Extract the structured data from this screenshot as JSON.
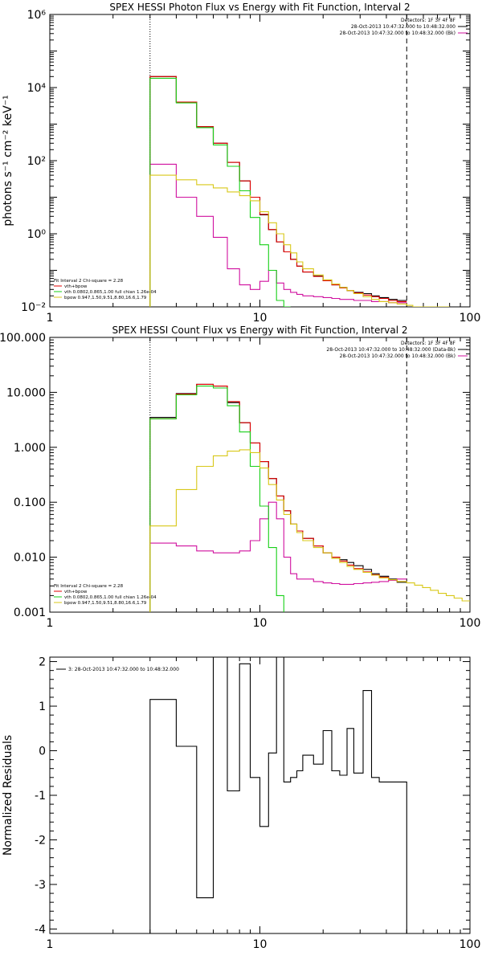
{
  "colors": {
    "data": "#000000",
    "background": "#d0109f",
    "total_fit": "#e00000",
    "vth": "#18d018",
    "bpow": "#d8c818"
  },
  "chart_data": [
    {
      "type": "line",
      "scale": "log-log",
      "title": "SPEX HESSI Photon Flux vs Energy with Fit Function, Interval 2",
      "xlabel": "",
      "ylabel": "photons s⁻¹ cm⁻² keV⁻¹",
      "xlim": [
        1,
        100
      ],
      "ylim": [
        0.01,
        1000000
      ],
      "xticks": [
        "1",
        "10",
        "100"
      ],
      "yticks": [
        {
          "value": 0.01,
          "label": "10⁻²"
        },
        {
          "value": 1,
          "label": "10⁰"
        },
        {
          "value": 100,
          "label": "10²"
        },
        {
          "value": 10000,
          "label": "10⁴"
        },
        {
          "value": 1000000,
          "label": "10⁶"
        }
      ],
      "vlines": [
        3,
        50
      ],
      "legend_top": [
        "Detectors: 1F 3F 4F 8F",
        "28-Oct-2013 10:47:32.000 to 10:48:32.000",
        "28-Oct-2013 10:47:32.000 to 10:48:32.000 (Bk)"
      ],
      "legend_bottom": [
        "Fit Interval 2   Chi-square = 2.28",
        "vth+bpow",
        "vth 0.0802,0.865,1.00  full chian 1.26e-04",
        "bpow 0.947,1.50,9.51,8.80,16.6,1.79"
      ],
      "edges": [
        3,
        4,
        5,
        6,
        7,
        8,
        9,
        10,
        11,
        12,
        13,
        14,
        15,
        16,
        18,
        20,
        22,
        24,
        26,
        28,
        31,
        34,
        37,
        41,
        45,
        50
      ],
      "series": [
        {
          "name": "28-Oct-2013 10:47:32.000 to 10:48:32.000",
          "color_key": "data",
          "ext": [],
          "values": [
            20000,
            4000,
            850,
            300,
            90,
            28,
            10,
            3.3,
            1.3,
            0.6,
            0.32,
            0.2,
            0.13,
            0.09,
            0.07,
            0.052,
            0.04,
            0.034,
            0.028,
            0.025,
            0.023,
            0.02,
            0.018,
            0.016,
            0.015
          ]
        },
        {
          "name": "28-Oct-2013 10:47:32.000 to 10:48:32.000 (Bk)",
          "color_key": "background",
          "ext": [],
          "values": [
            80,
            10,
            3,
            0.8,
            0.11,
            0.04,
            0.03,
            0.05,
            0.1,
            0.045,
            0.03,
            0.025,
            0.022,
            0.02,
            0.019,
            0.018,
            0.017,
            0.016,
            0.016,
            0.015,
            0.015,
            0.014,
            0.014,
            0.013,
            0.013
          ]
        },
        {
          "name": "vth+bpow",
          "color_key": "total_fit",
          "ext": [],
          "values": [
            20000,
            4000,
            850,
            300,
            90,
            28,
            10,
            3.4,
            1.3,
            0.6,
            0.32,
            0.2,
            0.13,
            0.09,
            0.068,
            0.052,
            0.04,
            0.033,
            0.028,
            0.024,
            0.021,
            0.019,
            0.017,
            0.015,
            0.014
          ]
        },
        {
          "name": "vth 0.0802,0.865,1.00  full chian 1.26e-04",
          "color_key": "vth",
          "ext": [],
          "values": [
            18000,
            3800,
            800,
            270,
            70,
            15,
            2.8,
            0.5,
            0.1,
            0.015,
            0.002,
            null,
            null,
            null,
            null,
            null,
            null,
            null,
            null,
            null,
            null,
            null,
            null,
            null,
            null
          ]
        },
        {
          "name": "bpow 0.947,1.50,9.51,8.80,16.6,1.79",
          "color_key": "bpow",
          "ext": [
            {
              "start": 50,
              "end": 80,
              "values": [
                0.011,
                0.01,
                0.009,
                0.008,
                0.007,
                0.006,
                0.005
              ]
            }
          ],
          "values": [
            40,
            30,
            22,
            18,
            14,
            11,
            8,
            4,
            2,
            1,
            0.5,
            0.3,
            0.17,
            0.11,
            0.075,
            0.055,
            0.042,
            0.034,
            0.028,
            0.023,
            0.019,
            0.016,
            0.014,
            0.013,
            0.012
          ]
        }
      ]
    },
    {
      "type": "line",
      "scale": "log-log",
      "title": "SPEX HESSI Count Flux vs Energy with Fit Function, Interval 2",
      "xlabel": "",
      "ylabel": "",
      "xlim": [
        1,
        100
      ],
      "ylim": [
        0.001,
        100
      ],
      "xticks": [
        "1",
        "10",
        "100"
      ],
      "yticks": [
        {
          "value": 0.001,
          "label": "0.001"
        },
        {
          "value": 0.01,
          "label": "0.010"
        },
        {
          "value": 0.1,
          "label": "0.100"
        },
        {
          "value": 1,
          "label": "1.000"
        },
        {
          "value": 10,
          "label": "10.000"
        },
        {
          "value": 100,
          "label": "100.000"
        }
      ],
      "vlines": [
        3,
        50
      ],
      "legend_top": [
        "Detectors: 1F 3F 4F 8F",
        "28-Oct-2013 10:47:32.000 to 10:48:32.000 (Data-Bk)",
        "28-Oct-2013 10:47:32.000 to 10:48:32.000 (Bk)"
      ],
      "legend_bottom": [
        "Fit Interval 2   Chi-square = 2.28",
        "vth+bpow",
        "vth 0.0802,0.865,1.00  full chian 1.26e-04",
        "bpow 0.947,1.50,9.51,8.80,16.6,1.79"
      ],
      "edges": [
        3,
        4,
        5,
        6,
        7,
        8,
        9,
        10,
        11,
        12,
        13,
        14,
        15,
        16,
        18,
        20,
        22,
        24,
        26,
        28,
        31,
        34,
        37,
        41,
        45,
        50
      ],
      "series": [
        {
          "name": "28-Oct-2013 10:47:32.000 to 10:48:32.000 (Data-Bk)",
          "color_key": "data",
          "ext": [],
          "values": [
            3.5,
            9.5,
            14,
            13,
            6.5,
            2.8,
            1.2,
            0.55,
            0.27,
            0.13,
            0.07,
            0.04,
            0.03,
            0.022,
            0.016,
            0.012,
            0.01,
            0.009,
            0.008,
            0.007,
            0.006,
            0.005,
            0.0045,
            0.004,
            0.0035
          ]
        },
        {
          "name": "28-Oct-2013 10:47:32.000 to 10:48:32.000 (Bk)",
          "color_key": "background",
          "ext": [],
          "values": [
            0.018,
            0.016,
            0.013,
            0.012,
            0.012,
            0.013,
            0.02,
            0.05,
            0.1,
            0.05,
            0.01,
            0.005,
            0.004,
            0.004,
            0.0036,
            0.0034,
            0.0033,
            0.0032,
            0.0032,
            0.0033,
            0.0034,
            0.0035,
            0.0036,
            0.0038,
            0.004
          ]
        },
        {
          "name": "vth+bpow",
          "color_key": "total_fit",
          "ext": [],
          "values": [
            3.3,
            9.3,
            14,
            13,
            6.8,
            2.8,
            1.2,
            0.55,
            0.27,
            0.13,
            0.07,
            0.04,
            0.03,
            0.022,
            0.016,
            0.012,
            0.01,
            0.0085,
            0.0072,
            0.0062,
            0.0054,
            0.0048,
            0.0043,
            0.0039,
            0.0036
          ]
        },
        {
          "name": "vth 0.0802,0.865,1.00  full chian 1.26e-04",
          "color_key": "vth",
          "ext": [],
          "values": [
            3.3,
            9,
            13,
            12,
            5.7,
            1.9,
            0.45,
            0.085,
            0.015,
            0.002,
            null,
            null,
            null,
            null,
            null,
            null,
            null,
            null,
            null,
            null,
            null,
            null,
            null,
            null,
            null
          ]
        },
        {
          "name": "bpow 0.947,1.50,9.51,8.80,16.6,1.79",
          "color_key": "bpow",
          "ext": [
            {
              "start": 50,
              "end": 100,
              "values": [
                0.0034,
                0.0031,
                0.0028,
                0.0025,
                0.0022,
                0.002,
                0.0018,
                0.0016
              ]
            }
          ],
          "values": [
            0.037,
            0.17,
            0.45,
            0.7,
            0.85,
            0.9,
            0.8,
            0.42,
            0.21,
            0.11,
            0.06,
            0.04,
            0.028,
            0.02,
            0.015,
            0.012,
            0.0095,
            0.008,
            0.0068,
            0.006,
            0.0053,
            0.0047,
            0.0042,
            0.0039,
            0.0036
          ]
        }
      ]
    },
    {
      "type": "line",
      "scale": "log-linear",
      "title": "",
      "xlabel": "",
      "ylabel": "Normalized Residuals",
      "xlim": [
        1,
        100
      ],
      "ylim": [
        -4.1,
        2.1
      ],
      "xticks": [
        "1",
        "10",
        "100"
      ],
      "yticks": [
        {
          "value": -4,
          "label": "-4"
        },
        {
          "value": -3,
          "label": "-3"
        },
        {
          "value": -2,
          "label": "-2"
        },
        {
          "value": -1,
          "label": "-1"
        },
        {
          "value": 0,
          "label": "0"
        },
        {
          "value": 1,
          "label": "1"
        },
        {
          "value": 2,
          "label": "2"
        }
      ],
      "vlines": [],
      "legend_top": [],
      "legend_bottom": [],
      "legend_inset": "3: 28-Oct-2013 10:47:32.000 to 10:48:32.000",
      "edges": [
        3,
        4,
        5,
        6,
        7,
        8,
        9,
        10,
        11,
        12,
        13,
        14,
        15,
        16,
        18,
        20,
        22,
        24,
        26,
        28,
        31,
        34,
        37,
        41,
        45,
        50
      ],
      "series": [
        {
          "name": "3: 28-Oct-2013 10:47:32.000 to 10:48:32.000",
          "color_key": "data",
          "drop_to_floor": true,
          "ext": [],
          "values": [
            1.15,
            0.1,
            -3.3,
            2.1,
            -0.9,
            1.95,
            -0.6,
            -1.7,
            -0.05,
            2.1,
            -0.7,
            -0.6,
            -0.45,
            -0.1,
            -0.3,
            0.45,
            -0.45,
            -0.55,
            0.5,
            -0.5,
            1.35,
            -0.6,
            -0.7,
            -0.7,
            -0.7
          ]
        }
      ]
    }
  ]
}
